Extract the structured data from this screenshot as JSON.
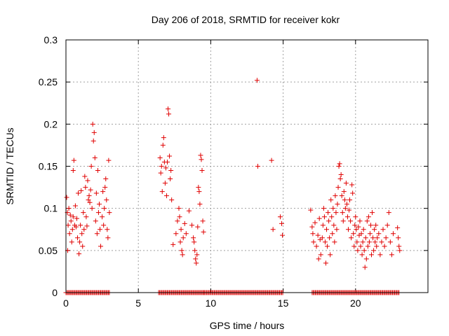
{
  "chart_data": {
    "type": "scatter",
    "title": "Day 206 of 2018, SRMTID for receiver kokr",
    "xlabel": "GPS time / hours",
    "ylabel": "SRMTID / TECUs",
    "xlim": [
      0,
      25
    ],
    "ylim": [
      0,
      0.3
    ],
    "xticks": [
      0,
      5,
      10,
      15,
      20
    ],
    "xtick_labels": [
      "0",
      "5",
      "10",
      "15",
      "20"
    ],
    "yticks": [
      0,
      0.05,
      0.1,
      0.15,
      0.2,
      0.25,
      0.3
    ],
    "ytick_labels": [
      "0",
      "0.05",
      "0.1",
      "0.15",
      "0.2",
      "0.25",
      "0.3"
    ],
    "grid": true,
    "marker": "plus",
    "color": "#e00000",
    "series": [
      {
        "name": "SRMTID",
        "points": [
          [
            0.05,
            0.113
          ],
          [
            0.1,
            0.095
          ],
          [
            0.12,
            0.05
          ],
          [
            0.15,
            0.08
          ],
          [
            0.2,
            0.1
          ],
          [
            0.25,
            0.07
          ],
          [
            0.3,
            0.092
          ],
          [
            0.35,
            0.085
          ],
          [
            0.4,
            0.06
          ],
          [
            0.45,
            0.075
          ],
          [
            0.5,
            0.09
          ],
          [
            0.5,
            0.145
          ],
          [
            0.55,
            0.157
          ],
          [
            0.6,
            0.08
          ],
          [
            0.65,
            0.103
          ],
          [
            0.7,
            0.078
          ],
          [
            0.75,
            0.088
          ],
          [
            0.8,
            0.065
          ],
          [
            0.85,
            0.118
          ],
          [
            0.9,
            0.046
          ],
          [
            0.95,
            0.06
          ],
          [
            1.0,
            0.08
          ],
          [
            1.05,
            0.121
          ],
          [
            1.1,
            0.07
          ],
          [
            1.15,
            0.055
          ],
          [
            1.2,
            0.095
          ],
          [
            1.25,
            0.075
          ],
          [
            1.3,
            0.138
          ],
          [
            1.35,
            0.125
          ],
          [
            1.4,
            0.09
          ],
          [
            1.45,
            0.079
          ],
          [
            1.5,
            0.133
          ],
          [
            1.55,
            0.11
          ],
          [
            1.6,
            0.115
          ],
          [
            1.65,
            0.107
          ],
          [
            1.7,
            0.122
          ],
          [
            1.75,
            0.15
          ],
          [
            1.8,
            0.1
          ],
          [
            1.85,
            0.2
          ],
          [
            1.9,
            0.18
          ],
          [
            1.95,
            0.19
          ],
          [
            2.0,
            0.16
          ],
          [
            2.05,
            0.085
          ],
          [
            2.1,
            0.118
          ],
          [
            2.15,
            0.07
          ],
          [
            2.2,
            0.145
          ],
          [
            2.25,
            0.095
          ],
          [
            2.3,
            0.105
          ],
          [
            2.35,
            0.075
          ],
          [
            2.4,
            0.055
          ],
          [
            2.5,
            0.09
          ],
          [
            2.55,
            0.12
          ],
          [
            2.6,
            0.08
          ],
          [
            2.65,
            0.1
          ],
          [
            2.7,
            0.125
          ],
          [
            2.75,
            0.135
          ],
          [
            2.8,
            0.11
          ],
          [
            2.85,
            0.075
          ],
          [
            2.9,
            0.065
          ],
          [
            2.95,
            0.157
          ],
          [
            3.0,
            0.095
          ],
          [
            6.5,
            0.16
          ],
          [
            6.55,
            0.142
          ],
          [
            6.6,
            0.15
          ],
          [
            6.65,
            0.12
          ],
          [
            6.7,
            0.175
          ],
          [
            6.75,
            0.184
          ],
          [
            6.8,
            0.155
          ],
          [
            6.85,
            0.13
          ],
          [
            6.9,
            0.148
          ],
          [
            6.95,
            0.115
          ],
          [
            7.0,
            0.155
          ],
          [
            7.05,
            0.218
          ],
          [
            7.1,
            0.212
          ],
          [
            7.15,
            0.162
          ],
          [
            7.2,
            0.135
          ],
          [
            7.25,
            0.145
          ],
          [
            7.3,
            0.11
          ],
          [
            7.4,
            0.057
          ],
          [
            7.6,
            0.07
          ],
          [
            7.7,
            0.085
          ],
          [
            7.8,
            0.1
          ],
          [
            7.85,
            0.09
          ],
          [
            7.9,
            0.06
          ],
          [
            7.95,
            0.075
          ],
          [
            8.0,
            0.05
          ],
          [
            8.05,
            0.045
          ],
          [
            8.1,
            0.065
          ],
          [
            8.2,
            0.082
          ],
          [
            8.3,
            0.07
          ],
          [
            8.5,
            0.097
          ],
          [
            8.7,
            0.08
          ],
          [
            8.8,
            0.065
          ],
          [
            8.85,
            0.06
          ],
          [
            8.9,
            0.05
          ],
          [
            8.95,
            0.04
          ],
          [
            9.0,
            0.035
          ],
          [
            9.05,
            0.045
          ],
          [
            9.1,
            0.078
          ],
          [
            9.15,
            0.125
          ],
          [
            9.2,
            0.12
          ],
          [
            9.25,
            0.105
          ],
          [
            9.3,
            0.163
          ],
          [
            9.35,
            0.158
          ],
          [
            9.4,
            0.145
          ],
          [
            9.45,
            0.085
          ],
          [
            9.5,
            0.072
          ],
          [
            13.2,
            0.252
          ],
          [
            13.25,
            0.15
          ],
          [
            14.2,
            0.157
          ],
          [
            14.3,
            0.075
          ],
          [
            14.8,
            0.09
          ],
          [
            14.9,
            0.082
          ],
          [
            14.95,
            0.068
          ],
          [
            16.9,
            0.098
          ],
          [
            17.0,
            0.078
          ],
          [
            17.05,
            0.07
          ],
          [
            17.1,
            0.06
          ],
          [
            17.2,
            0.083
          ],
          [
            17.3,
            0.055
          ],
          [
            17.4,
            0.068
          ],
          [
            17.45,
            0.04
          ],
          [
            17.5,
            0.088
          ],
          [
            17.55,
            0.063
          ],
          [
            17.6,
            0.045
          ],
          [
            17.7,
            0.065
          ],
          [
            17.75,
            0.08
          ],
          [
            17.8,
            0.1
          ],
          [
            17.85,
            0.09
          ],
          [
            17.9,
            0.06
          ],
          [
            17.95,
            0.035
          ],
          [
            18.0,
            0.075
          ],
          [
            18.05,
            0.055
          ],
          [
            18.1,
            0.095
          ],
          [
            18.15,
            0.085
          ],
          [
            18.2,
            0.065
          ],
          [
            18.25,
            0.045
          ],
          [
            18.3,
            0.11
          ],
          [
            18.35,
            0.09
          ],
          [
            18.4,
            0.07
          ],
          [
            18.45,
            0.1
          ],
          [
            18.5,
            0.08
          ],
          [
            18.55,
            0.06
          ],
          [
            18.6,
            0.115
          ],
          [
            18.65,
            0.095
          ],
          [
            18.7,
            0.075
          ],
          [
            18.75,
            0.105
          ],
          [
            18.8,
            0.125
          ],
          [
            18.85,
            0.15
          ],
          [
            18.9,
            0.153
          ],
          [
            18.95,
            0.135
          ],
          [
            19.0,
            0.14
          ],
          [
            19.05,
            0.115
          ],
          [
            19.1,
            0.095
          ],
          [
            19.15,
            0.085
          ],
          [
            19.2,
            0.12
          ],
          [
            19.25,
            0.11
          ],
          [
            19.3,
            0.1
          ],
          [
            19.35,
            0.13
          ],
          [
            19.4,
            0.105
          ],
          [
            19.45,
            0.09
          ],
          [
            19.5,
            0.075
          ],
          [
            19.55,
            0.098
          ],
          [
            19.6,
            0.11
          ],
          [
            19.65,
            0.085
          ],
          [
            19.7,
            0.065
          ],
          [
            19.75,
            0.128
          ],
          [
            19.8,
            0.118
          ],
          [
            19.85,
            0.07
          ],
          [
            19.9,
            0.055
          ],
          [
            19.95,
            0.08
          ],
          [
            20.0,
            0.09
          ],
          [
            20.05,
            0.075
          ],
          [
            20.1,
            0.06
          ],
          [
            20.15,
            0.05
          ],
          [
            20.2,
            0.078
          ],
          [
            20.25,
            0.068
          ],
          [
            20.3,
            0.085
          ],
          [
            20.35,
            0.055
          ],
          [
            20.4,
            0.07
          ],
          [
            20.45,
            0.045
          ],
          [
            20.5,
            0.06
          ],
          [
            20.55,
            0.075
          ],
          [
            20.6,
            0.05
          ],
          [
            20.65,
            0.03
          ],
          [
            20.7,
            0.065
          ],
          [
            20.75,
            0.04
          ],
          [
            20.8,
            0.085
          ],
          [
            20.85,
            0.055
          ],
          [
            20.9,
            0.09
          ],
          [
            20.95,
            0.06
          ],
          [
            21.0,
            0.07
          ],
          [
            21.05,
            0.08
          ],
          [
            21.1,
            0.045
          ],
          [
            21.15,
            0.095
          ],
          [
            21.2,
            0.065
          ],
          [
            21.25,
            0.05
          ],
          [
            21.3,
            0.075
          ],
          [
            21.35,
            0.06
          ],
          [
            21.4,
            0.08
          ],
          [
            21.45,
            0.055
          ],
          [
            21.5,
            0.065
          ],
          [
            21.6,
            0.07
          ],
          [
            21.7,
            0.045
          ],
          [
            21.8,
            0.06
          ],
          [
            21.9,
            0.075
          ],
          [
            22.0,
            0.055
          ],
          [
            22.1,
            0.065
          ],
          [
            22.2,
            0.08
          ],
          [
            22.3,
            0.095
          ],
          [
            22.4,
            0.06
          ],
          [
            22.5,
            0.045
          ],
          [
            22.6,
            0.07
          ],
          [
            22.9,
            0.077
          ],
          [
            22.95,
            0.065
          ],
          [
            23.0,
            0.055
          ],
          [
            23.05,
            0.05
          ]
        ],
        "zero_ranges": [
          [
            0.0,
            3.0
          ],
          [
            6.4,
            9.5
          ],
          [
            9.5,
            15.0
          ],
          [
            17.0,
            23.0
          ]
        ]
      }
    ]
  }
}
